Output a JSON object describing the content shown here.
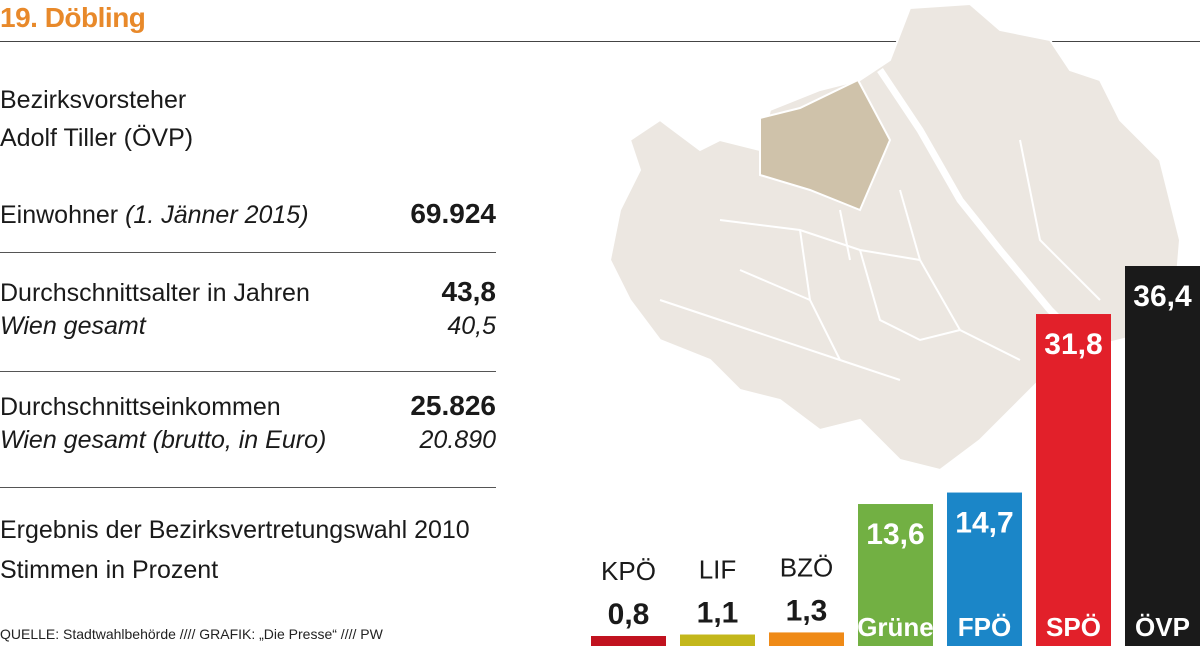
{
  "header": {
    "title": "19. Döbling"
  },
  "district_head": {
    "heading": "Bezirksvorsteher",
    "name": "Adolf Tiller (ÖVP)"
  },
  "stats": {
    "population": {
      "label": "Einwohner",
      "label_note": "(1. Jänner 2015)",
      "value": "69.924"
    },
    "average_age": {
      "label": "Durchschnittsalter in Jahren",
      "value": "43,8",
      "sub_label": "Wien gesamt",
      "sub_value": "40,5"
    },
    "average_income": {
      "label": "Durchschnittseinkommen",
      "value": "25.826",
      "sub_label": "Wien gesamt (brutto, in Euro)",
      "sub_value": "20.890"
    }
  },
  "election": {
    "heading": "Ergebnis der Bezirksvertretungswahl 2010",
    "subheading": "Stimmen in Prozent"
  },
  "source": "QUELLE: Stadtwahlbehörde  ////  GRAFIK: „Die Presse“  ////  PW",
  "colors": {
    "title": "#e8892a",
    "map_fill": "#ece7e1",
    "map_highlight": "#cfc2aa"
  },
  "chart_data": {
    "type": "bar",
    "title": "",
    "categories": [
      "KPÖ",
      "LIF",
      "BZÖ",
      "Grüne",
      "FPÖ",
      "SPÖ",
      "ÖVP"
    ],
    "values": [
      0.8,
      1.1,
      1.3,
      13.6,
      14.7,
      31.8,
      36.4
    ],
    "value_labels": [
      "0,8",
      "1,1",
      "1,3",
      "13,6",
      "14,7",
      "31,8",
      "36,4"
    ],
    "colors": [
      "#c1121f",
      "#c3b71b",
      "#ef8a17",
      "#72b043",
      "#1b86c8",
      "#e2202a",
      "#1a1a1a"
    ],
    "ylim": [
      0,
      36.4
    ],
    "xlabel": "",
    "ylabel": "",
    "grid": false,
    "legend": "none"
  }
}
